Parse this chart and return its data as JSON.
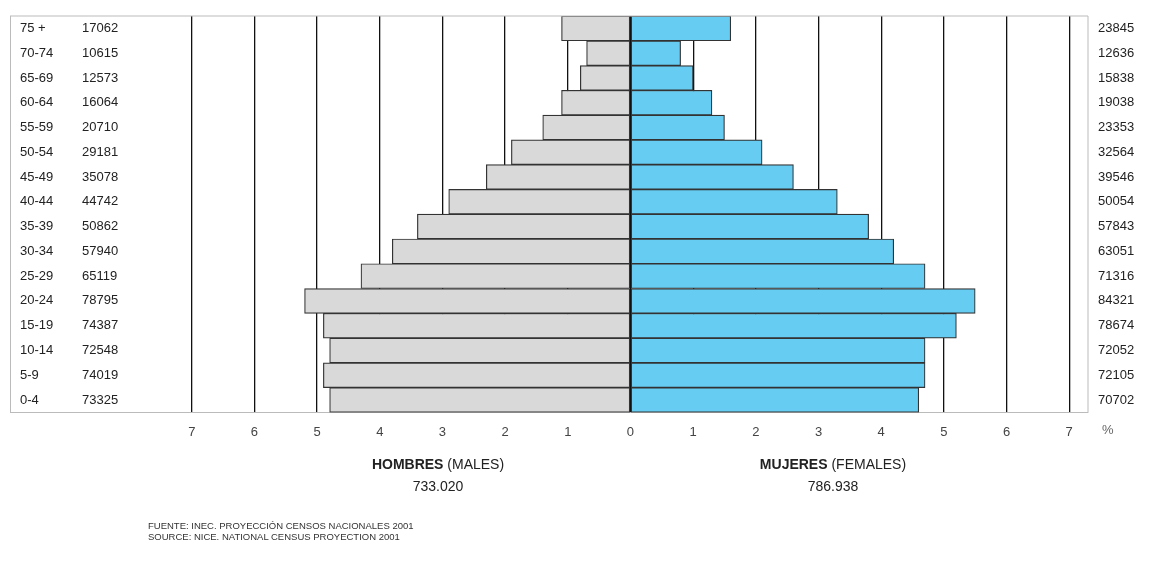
{
  "chart_data": {
    "type": "bar",
    "orientation": "horizontal",
    "stacked": true,
    "grid": "x",
    "legend": false,
    "xlabel": "%",
    "categories": [
      "75 +",
      "70-74",
      "65-69",
      "60-64",
      "55-59",
      "50-54",
      "45-49",
      "40-44",
      "35-39",
      "30-34",
      "25-29",
      "20-24",
      "15-19",
      "10-14",
      "5-9",
      "0-4"
    ],
    "series": [
      {
        "color": "#d9d9d9",
        "values": [
          -1.1,
          -0.7,
          -0.8,
          -1.1,
          -1.4,
          -1.9,
          -2.3,
          -2.9,
          -3.4,
          -3.8,
          -4.3,
          -5.2,
          -4.9,
          -4.8,
          -4.9,
          -4.8
        ]
      },
      {
        "color": "#66ccf2",
        "values": [
          1.6,
          0.8,
          1.0,
          1.3,
          1.5,
          2.1,
          2.6,
          3.3,
          3.8,
          4.2,
          4.7,
          5.5,
          5.2,
          4.7,
          4.7,
          4.6
        ]
      }
    ],
    "xlim": [
      -9.9,
      7.3
    ],
    "xticks": [
      {
        "value": -7,
        "label": "7"
      },
      {
        "value": -6,
        "label": "6"
      },
      {
        "value": -5,
        "label": "5"
      },
      {
        "value": -4,
        "label": "4"
      },
      {
        "value": -3,
        "label": "3"
      },
      {
        "value": -2,
        "label": "2"
      },
      {
        "value": -1,
        "label": "1"
      },
      0,
      1,
      2,
      3,
      4,
      5,
      6,
      7
    ],
    "annotations": [
      "17062",
      "10615",
      "12573",
      "16064",
      "20710",
      "29181",
      "35078",
      "44742",
      "50862",
      "57940",
      "65119",
      "78795",
      "74387",
      "72548",
      "74019",
      "73325",
      "23845",
      "12636",
      "15838",
      "19038",
      "23353",
      "32564",
      "39546",
      "50054",
      "57843",
      "63051",
      "71316",
      "84321",
      "78674",
      "72052",
      "72105",
      "70702",
      "HOMBRES (MALES)",
      "733.020",
      "MUJERES (FEMALES)",
      "786.938",
      "FUENTE: INEC. PROYECCIÓN CENSOS NACIONALES 2001",
      "SOURCE: NICE. NATIONAL CENSUS PROYECTION 2001"
    ]
  }
}
